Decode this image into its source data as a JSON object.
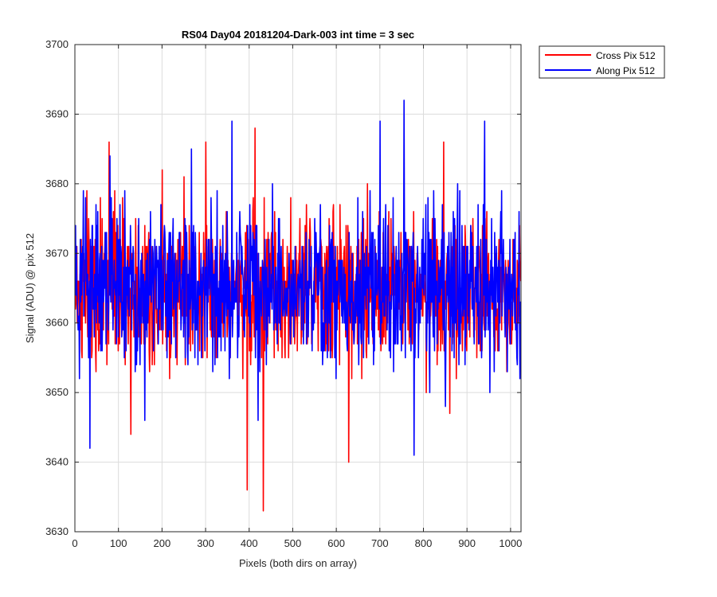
{
  "chart_data": {
    "type": "line",
    "title": "RS04 Day04 20181204-Dark-003 int time = 3 sec",
    "xlabel": "Pixels (both dirs on array)",
    "ylabel": "Signal (ADU) @ pix 512",
    "xlim": [
      0,
      1024
    ],
    "ylim": [
      3630,
      3700
    ],
    "xticks": [
      0,
      100,
      200,
      300,
      400,
      500,
      600,
      700,
      800,
      900,
      1000
    ],
    "xtick_labels": [
      "0",
      "100",
      "200",
      "300",
      "400",
      "500",
      "600",
      "700",
      "800",
      "900",
      "1000"
    ],
    "yticks": [
      3630,
      3640,
      3650,
      3660,
      3670,
      3680,
      3690,
      3700
    ],
    "ytick_labels": [
      "3630",
      "3640",
      "3650",
      "3660",
      "3670",
      "3680",
      "3690",
      "3700"
    ],
    "grid": true,
    "legend_position": "top-right, outside plot area",
    "series": [
      {
        "name": "Cross Pix 512",
        "color": "#ff0000",
        "x": [
          0,
          40,
          78,
          128,
          200,
          250,
          300,
          345,
          395,
          413,
          432,
          480,
          500,
          550,
          600,
          628,
          680,
          750,
          800,
          846,
          860,
          900,
          940,
          1000,
          1023
        ],
        "values": [
          3665,
          3667,
          3686,
          3644,
          3682,
          3681,
          3686,
          3670,
          3636,
          3688,
          3633,
          3668,
          3667,
          3666,
          3668,
          3640,
          3670,
          3665,
          3666,
          3686,
          3647,
          3670,
          3668,
          3664,
          3666
        ],
        "mean": 3665,
        "std": 5.5,
        "points": 1024
      },
      {
        "name": "Along Pix 512",
        "color": "#0000ff",
        "x": [
          0,
          34,
          80,
          100,
          160,
          200,
          267,
          300,
          360,
          420,
          440,
          480,
          500,
          560,
          620,
          680,
          700,
          755,
          778,
          800,
          850,
          900,
          940,
          960,
          1000,
          1023
        ],
        "values": [
          3666,
          3642,
          3684,
          3664,
          3646,
          3666,
          3685,
          3665,
          3689,
          3646,
          3668,
          3666,
          3669,
          3665,
          3667,
          3666,
          3689,
          3692,
          3641,
          3665,
          3648,
          3668,
          3689,
          3665,
          3662,
          3663
        ],
        "mean": 3665,
        "std": 5.5,
        "points": 1024
      }
    ]
  }
}
